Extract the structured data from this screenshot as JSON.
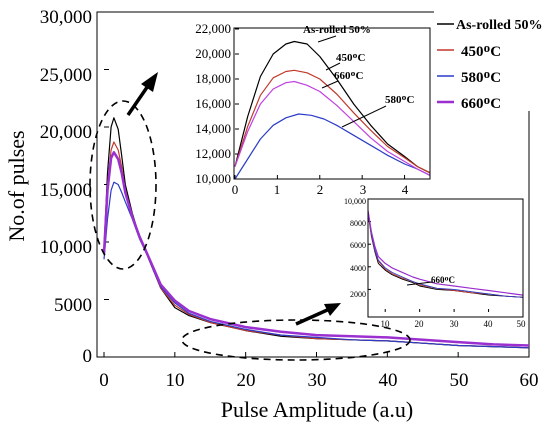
{
  "chart_data": [
    {
      "type": "line",
      "role": "main",
      "xlabel": "Pulse Amplitude (a.u)",
      "ylabel": "No.of pulses",
      "xlim": [
        0,
        60
      ],
      "ylim": [
        0,
        30000
      ],
      "x_ticks": [
        0,
        10,
        20,
        30,
        40,
        50,
        60
      ],
      "x_tick_labels": [
        "0",
        "10",
        "20",
        "30",
        "40",
        "50",
        "60"
      ],
      "y_ticks": [
        0,
        5000,
        10000,
        15000,
        20000,
        25000,
        30000
      ],
      "y_tick_labels": [
        "0",
        "5000",
        "10,000",
        "15,000",
        "20,000",
        "25,000",
        "30,000"
      ],
      "legend": {
        "placement": "top-right",
        "entries": [
          {
            "label": "As-rolled 50%",
            "color": "#000000"
          },
          {
            "label": "450ᴼC",
            "color": "#c0392b"
          },
          {
            "label": "580ᴼC",
            "color": "#2a3cc8"
          },
          {
            "label": "660ᴼC",
            "color": "#9b2fd0"
          }
        ]
      },
      "series": [
        {
          "name": "As-rolled 50%",
          "color": "#000000",
          "x": [
            0,
            0.5,
            1,
            1.4,
            2,
            2.5,
            3,
            4,
            5,
            6,
            7,
            8,
            10,
            12,
            15,
            20,
            25,
            30,
            35,
            40,
            45,
            50,
            55,
            60
          ],
          "y": [
            9500,
            16000,
            20000,
            20800,
            19800,
            17500,
            15000,
            12500,
            10500,
            9000,
            7500,
            6000,
            4300,
            3600,
            3000,
            2300,
            1800,
            1600,
            1500,
            1400,
            1200,
            1000,
            900,
            800
          ]
        },
        {
          "name": "450ᴼC",
          "color": "#c0392b",
          "x": [
            0,
            0.5,
            1,
            1.4,
            2,
            2.5,
            3,
            4,
            5,
            6,
            7,
            8,
            10,
            12,
            15,
            20,
            25,
            30,
            35,
            40,
            45,
            50,
            55,
            60
          ],
          "y": [
            9000,
            15000,
            18000,
            18700,
            18000,
            16500,
            14500,
            12300,
            10400,
            9000,
            7500,
            6000,
            4500,
            3700,
            3000,
            2300,
            1900,
            1600,
            1500,
            1400,
            1200,
            1000,
            900,
            800
          ]
        },
        {
          "name": "580ᴼC",
          "color": "#2a3cc8",
          "x": [
            0,
            0.5,
            1,
            1.4,
            2,
            2.5,
            3,
            4,
            5,
            6,
            7,
            8,
            10,
            12,
            15,
            20,
            25,
            30,
            35,
            40,
            45,
            50,
            55,
            60
          ],
          "y": [
            8500,
            12000,
            14500,
            15200,
            15000,
            14300,
            13500,
            12000,
            10300,
            9000,
            7500,
            6100,
            4700,
            3800,
            3100,
            2400,
            1900,
            1700,
            1500,
            1400,
            1200,
            1000,
            900,
            800
          ]
        },
        {
          "name": "660ᴼC",
          "color": "#9b2fd0",
          "x": [
            0,
            0.5,
            1,
            1.4,
            2,
            2.5,
            3,
            4,
            5,
            6,
            7,
            8,
            10,
            12,
            15,
            20,
            25,
            30,
            35,
            40,
            45,
            50,
            55,
            60
          ],
          "y": [
            9000,
            14500,
            17300,
            17800,
            17200,
            16000,
            14300,
            12200,
            10500,
            9100,
            7700,
            6300,
            4900,
            4000,
            3300,
            2600,
            2200,
            1900,
            1800,
            1700,
            1500,
            1300,
            1100,
            1000
          ]
        }
      ],
      "annotations": []
    },
    {
      "type": "line",
      "role": "inset-peak",
      "xlim": [
        0,
        4.6
      ],
      "ylim": [
        10000,
        22000
      ],
      "x_ticks": [
        0,
        1,
        2,
        3,
        4
      ],
      "x_tick_labels": [
        "0",
        "1",
        "2",
        "3",
        "4"
      ],
      "y_ticks": [
        10000,
        12000,
        14000,
        16000,
        18000,
        20000,
        22000
      ],
      "y_tick_labels": [
        "10,000",
        "12,000",
        "14,000",
        "16,000",
        "18,000",
        "20,000",
        "22,000"
      ],
      "series": [
        {
          "name": "As-rolled 50%",
          "color": "#000000",
          "x": [
            0,
            0.3,
            0.6,
            0.9,
            1.2,
            1.4,
            1.7,
            2.0,
            2.4,
            2.8,
            3.2,
            3.6,
            4.0,
            4.3,
            4.6
          ],
          "y": [
            11000,
            15000,
            18200,
            20000,
            20800,
            21000,
            20800,
            19800,
            18000,
            16000,
            14300,
            12800,
            11800,
            11000,
            10500
          ]
        },
        {
          "name": "450ᴼC",
          "color": "#c0392b",
          "x": [
            0,
            0.3,
            0.6,
            0.9,
            1.2,
            1.4,
            1.7,
            2.0,
            2.4,
            2.8,
            3.2,
            3.6,
            4.0,
            4.3,
            4.6
          ],
          "y": [
            11000,
            14200,
            16700,
            18100,
            18600,
            18700,
            18500,
            18000,
            16800,
            15300,
            13900,
            12600,
            11700,
            11000,
            10500
          ]
        },
        {
          "name": "580ᴼC",
          "color": "#2a3cc8",
          "x": [
            0,
            0.3,
            0.6,
            0.9,
            1.2,
            1.5,
            1.8,
            2.1,
            2.4,
            2.8,
            3.2,
            3.6,
            4.0,
            4.3,
            4.6
          ],
          "y": [
            10000,
            11600,
            13200,
            14300,
            14900,
            15200,
            15100,
            14800,
            14300,
            13500,
            12700,
            11900,
            11200,
            10800,
            10300
          ]
        },
        {
          "name": "660ᴼC",
          "color": "#c040e0",
          "x": [
            0,
            0.3,
            0.6,
            0.9,
            1.2,
            1.4,
            1.7,
            2.0,
            2.4,
            2.8,
            3.2,
            3.6,
            4.0,
            4.3,
            4.6
          ],
          "y": [
            11000,
            13800,
            16000,
            17200,
            17700,
            17800,
            17500,
            17000,
            15900,
            14600,
            13300,
            12200,
            11400,
            10800,
            10300
          ]
        }
      ],
      "annotations": [
        {
          "text": "As-rolled 50%"
        },
        {
          "text": "450ᴼC"
        },
        {
          "text": "660ᴼC"
        },
        {
          "text": "580ᴼC"
        }
      ]
    },
    {
      "type": "line",
      "role": "inset-tail",
      "xlim": [
        5,
        50
      ],
      "ylim": [
        0,
        10000
      ],
      "x_ticks": [
        10,
        20,
        30,
        40,
        50
      ],
      "x_tick_labels": [
        "10",
        "20",
        "30",
        "40",
        "50"
      ],
      "y_ticks": [
        2000,
        4000,
        6000,
        8000,
        10000
      ],
      "y_tick_labels": [
        "2000",
        "4000",
        "6000",
        "8000",
        "10,000"
      ],
      "series": [
        {
          "name": "As-rolled 50%",
          "color": "#000000",
          "x": [
            5,
            6,
            7,
            8,
            10,
            12,
            15,
            18,
            20,
            25,
            30,
            35,
            40,
            45,
            50
          ],
          "y": [
            8800,
            6700,
            5300,
            4300,
            3700,
            3300,
            2900,
            2600,
            2300,
            2000,
            1900,
            1700,
            1500,
            1400,
            1300
          ]
        },
        {
          "name": "450ᴼC",
          "color": "#c0392b",
          "x": [
            5,
            6,
            7,
            8,
            10,
            12,
            15,
            18,
            20,
            25,
            30,
            35,
            40,
            45,
            50
          ],
          "y": [
            8800,
            6800,
            5400,
            4500,
            3800,
            3400,
            3000,
            2700,
            2400,
            2100,
            1900,
            1700,
            1600,
            1400,
            1300
          ]
        },
        {
          "name": "580ᴼC",
          "color": "#2a3cc8",
          "x": [
            5,
            6,
            7,
            8,
            10,
            12,
            15,
            18,
            20,
            25,
            30,
            35,
            40,
            45,
            50
          ],
          "y": [
            8900,
            6900,
            5500,
            4600,
            3900,
            3500,
            3100,
            2700,
            2500,
            2100,
            2000,
            1800,
            1600,
            1400,
            1300
          ]
        },
        {
          "name": "660ᴼC",
          "color": "#9b2fd0",
          "x": [
            5,
            6,
            7,
            8,
            10,
            12,
            15,
            18,
            20,
            25,
            30,
            35,
            40,
            45,
            50
          ],
          "y": [
            9000,
            7100,
            5800,
            4900,
            4300,
            3900,
            3500,
            3100,
            2900,
            2500,
            2300,
            2100,
            1900,
            1700,
            1500
          ]
        }
      ],
      "annotations": [
        {
          "text": "660ᴼC"
        }
      ]
    }
  ]
}
